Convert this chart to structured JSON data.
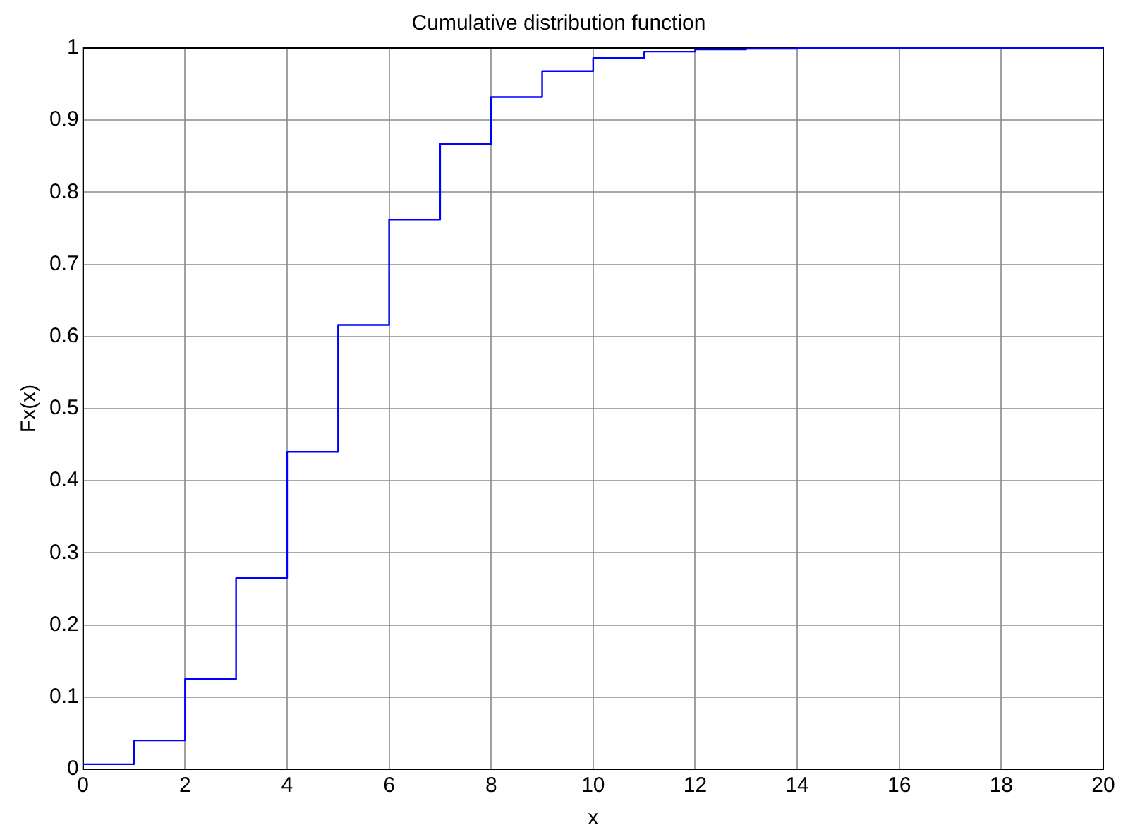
{
  "chart_data": {
    "type": "step",
    "title": "Cumulative distribution function",
    "xlabel": "x",
    "ylabel": "Fx(x)",
    "x": [
      0,
      1,
      2,
      3,
      4,
      5,
      6,
      7,
      8,
      9,
      10,
      11,
      12,
      13,
      14,
      15,
      16,
      17,
      18,
      19,
      20
    ],
    "series": [
      {
        "color": "#0000ff",
        "values": [
          0.007,
          0.04,
          0.125,
          0.265,
          0.44,
          0.616,
          0.762,
          0.867,
          0.932,
          0.968,
          0.986,
          0.995,
          0.998,
          0.999,
          1,
          1,
          1,
          1,
          1,
          1,
          1
        ]
      }
    ],
    "xlim": [
      0,
      20
    ],
    "xticks": [
      0,
      2,
      4,
      6,
      8,
      10,
      12,
      14,
      16,
      18,
      20
    ],
    "ylim": [
      0,
      1
    ],
    "yticks": [
      0,
      0.1,
      0.2,
      0.3,
      0.4,
      0.5,
      0.6,
      0.7,
      0.8,
      0.9,
      1
    ],
    "grid": true,
    "legend": false,
    "marker": "none",
    "line_style": "solid"
  }
}
